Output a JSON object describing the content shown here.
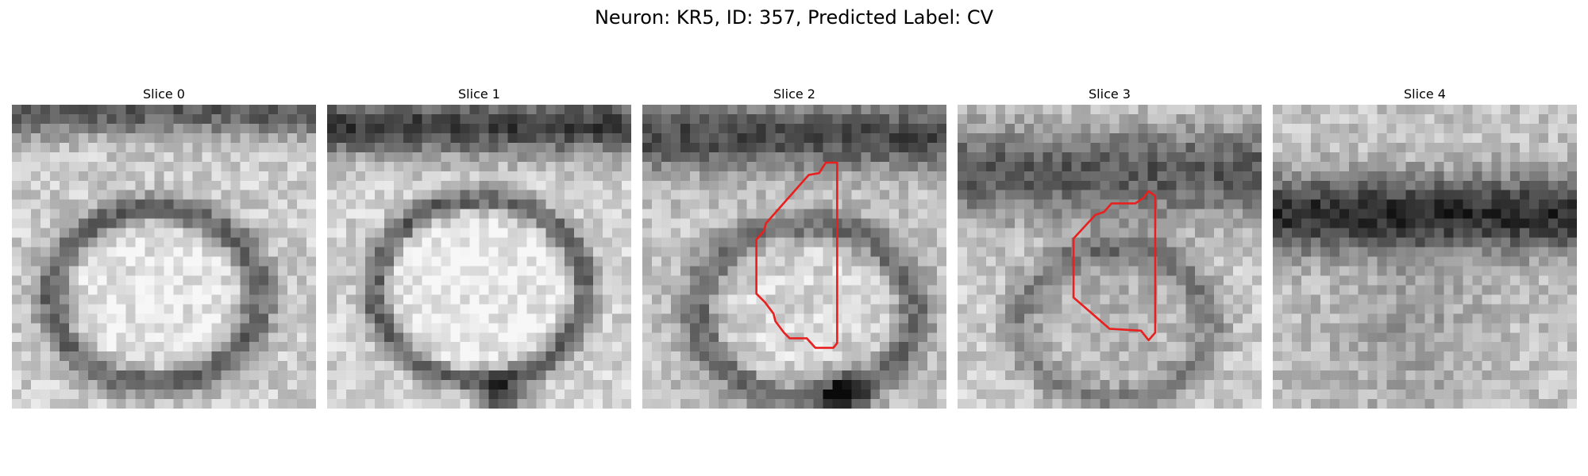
{
  "figure": {
    "title": "Neuron: KR5, ID: 357, Predicted Label: CV"
  },
  "panels": [
    {
      "title": "Slice 0",
      "has_contour": false
    },
    {
      "title": "Slice 1",
      "has_contour": false
    },
    {
      "title": "Slice 2",
      "has_contour": true
    },
    {
      "title": "Slice 3",
      "has_contour": true
    },
    {
      "title": "Slice 4",
      "has_contour": false
    }
  ],
  "colors": {
    "contour": "#e8201f",
    "background": "#ffffff"
  }
}
